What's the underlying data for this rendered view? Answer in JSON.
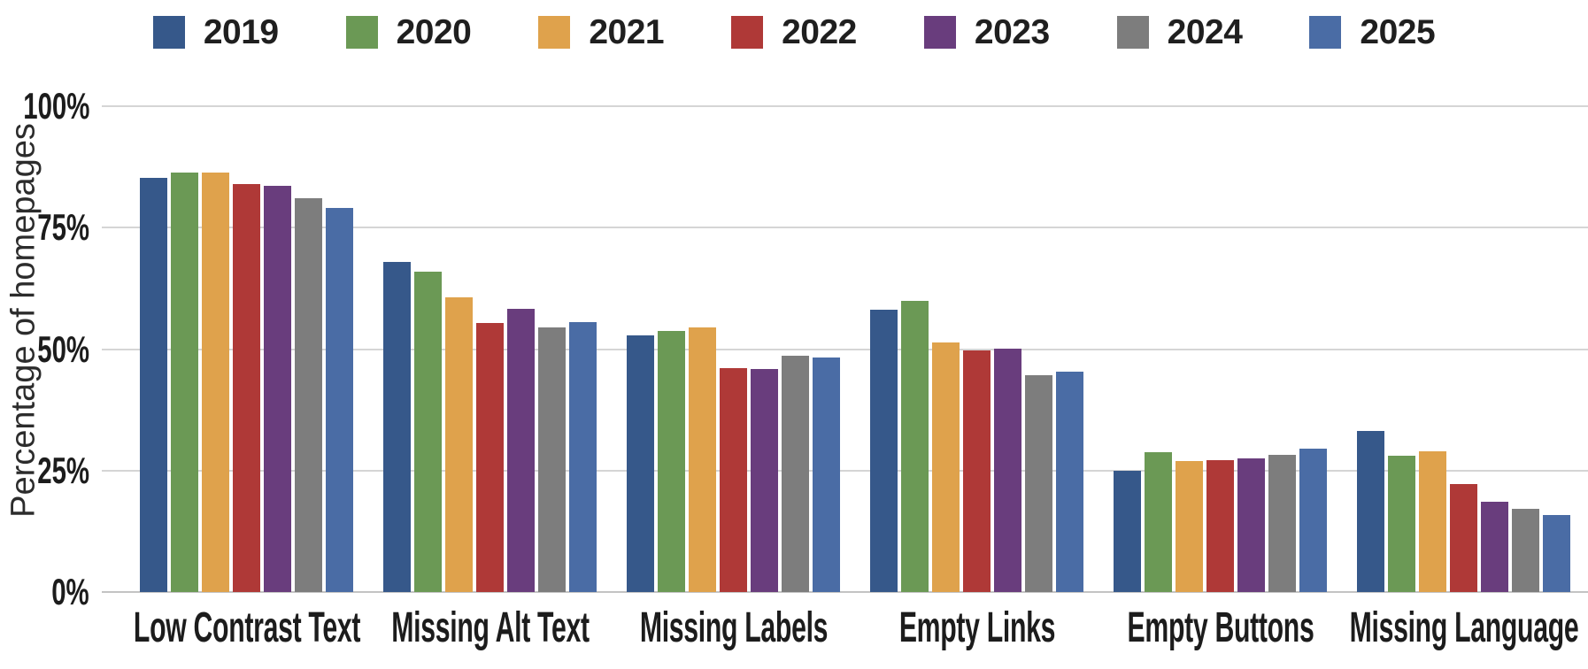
{
  "chart_data": {
    "type": "bar",
    "title": "",
    "ylabel": "Percentage of homepages",
    "xlabel": "",
    "ylim": [
      0,
      100
    ],
    "grid": "horizontal",
    "legend_position": "top",
    "y_ticks": [
      "100%",
      "75%",
      "50%",
      "25%",
      "0%"
    ],
    "categories": [
      "Low Contrast Text",
      "Missing Alt Text",
      "Missing Labels",
      "Empty Links",
      "Empty Buttons",
      "Missing Language"
    ],
    "series": [
      {
        "name": "2019",
        "color": "#36588a",
        "values": [
          85.3,
          68.0,
          52.8,
          58.1,
          25.0,
          33.1
        ]
      },
      {
        "name": "2020",
        "color": "#6b9955",
        "values": [
          86.3,
          66.0,
          53.8,
          59.9,
          28.7,
          28.0
        ]
      },
      {
        "name": "2021",
        "color": "#dfa24c",
        "values": [
          86.4,
          60.6,
          54.4,
          51.3,
          26.9,
          28.9
        ]
      },
      {
        "name": "2022",
        "color": "#af3937",
        "values": [
          83.9,
          55.4,
          46.1,
          49.7,
          27.2,
          22.3
        ]
      },
      {
        "name": "2023",
        "color": "#693d7d",
        "values": [
          83.6,
          58.2,
          45.9,
          50.1,
          27.5,
          18.6
        ]
      },
      {
        "name": "2024",
        "color": "#7d7d7d",
        "values": [
          81.0,
          54.5,
          48.6,
          44.6,
          28.2,
          17.1
        ]
      },
      {
        "name": "2025",
        "color": "#4a6ca5",
        "values": [
          79.1,
          55.5,
          48.2,
          45.4,
          29.6,
          15.8
        ]
      }
    ]
  }
}
